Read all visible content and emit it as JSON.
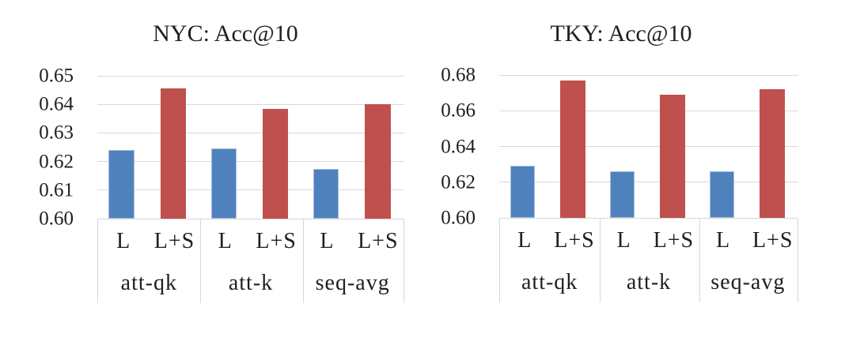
{
  "figure": {
    "description": "Two grouped bar charts comparing Acc@10 for variants L and L+S",
    "series_labels": [
      "L",
      "L+S"
    ],
    "colors": {
      "series": [
        "#4F81BD",
        "#C0504D"
      ],
      "bar_highlight": "#A8C0DE",
      "gridline": "#D9D9D9",
      "axis_box": "#D6D6D6",
      "text": "#1F1F1F",
      "background": "#FFFFFF"
    }
  },
  "chart_data": [
    {
      "type": "bar",
      "title": "NYC: Acc@10",
      "categories": [
        "att-qk",
        "att-k",
        "seq-avg"
      ],
      "sub_categories": [
        "L",
        "L+S"
      ],
      "series": [
        {
          "name": "L",
          "values": [
            0.624,
            0.6245,
            0.6175
          ]
        },
        {
          "name": "L+S",
          "values": [
            0.6455,
            0.6385,
            0.64
          ]
        }
      ],
      "xlabel": "",
      "ylabel": "",
      "ylim": [
        0.6,
        0.65
      ],
      "yticks": [
        0.6,
        0.61,
        0.62,
        0.63,
        0.64,
        0.65
      ],
      "ytick_labels": [
        "0.60",
        "0.61",
        "0.62",
        "0.63",
        "0.64",
        "0.65"
      ],
      "grid": true,
      "legend_position": "none"
    },
    {
      "type": "bar",
      "title": "TKY: Acc@10",
      "categories": [
        "att-qk",
        "att-k",
        "seq-avg"
      ],
      "sub_categories": [
        "L",
        "L+S"
      ],
      "series": [
        {
          "name": "L",
          "values": [
            0.629,
            0.626,
            0.626
          ]
        },
        {
          "name": "L+S",
          "values": [
            0.677,
            0.669,
            0.672
          ]
        }
      ],
      "xlabel": "",
      "ylabel": "",
      "ylim": [
        0.6,
        0.68
      ],
      "yticks": [
        0.6,
        0.62,
        0.64,
        0.66,
        0.68
      ],
      "ytick_labels": [
        "0.60",
        "0.62",
        "0.64",
        "0.66",
        "0.68"
      ],
      "grid": true,
      "legend_position": "none"
    }
  ]
}
